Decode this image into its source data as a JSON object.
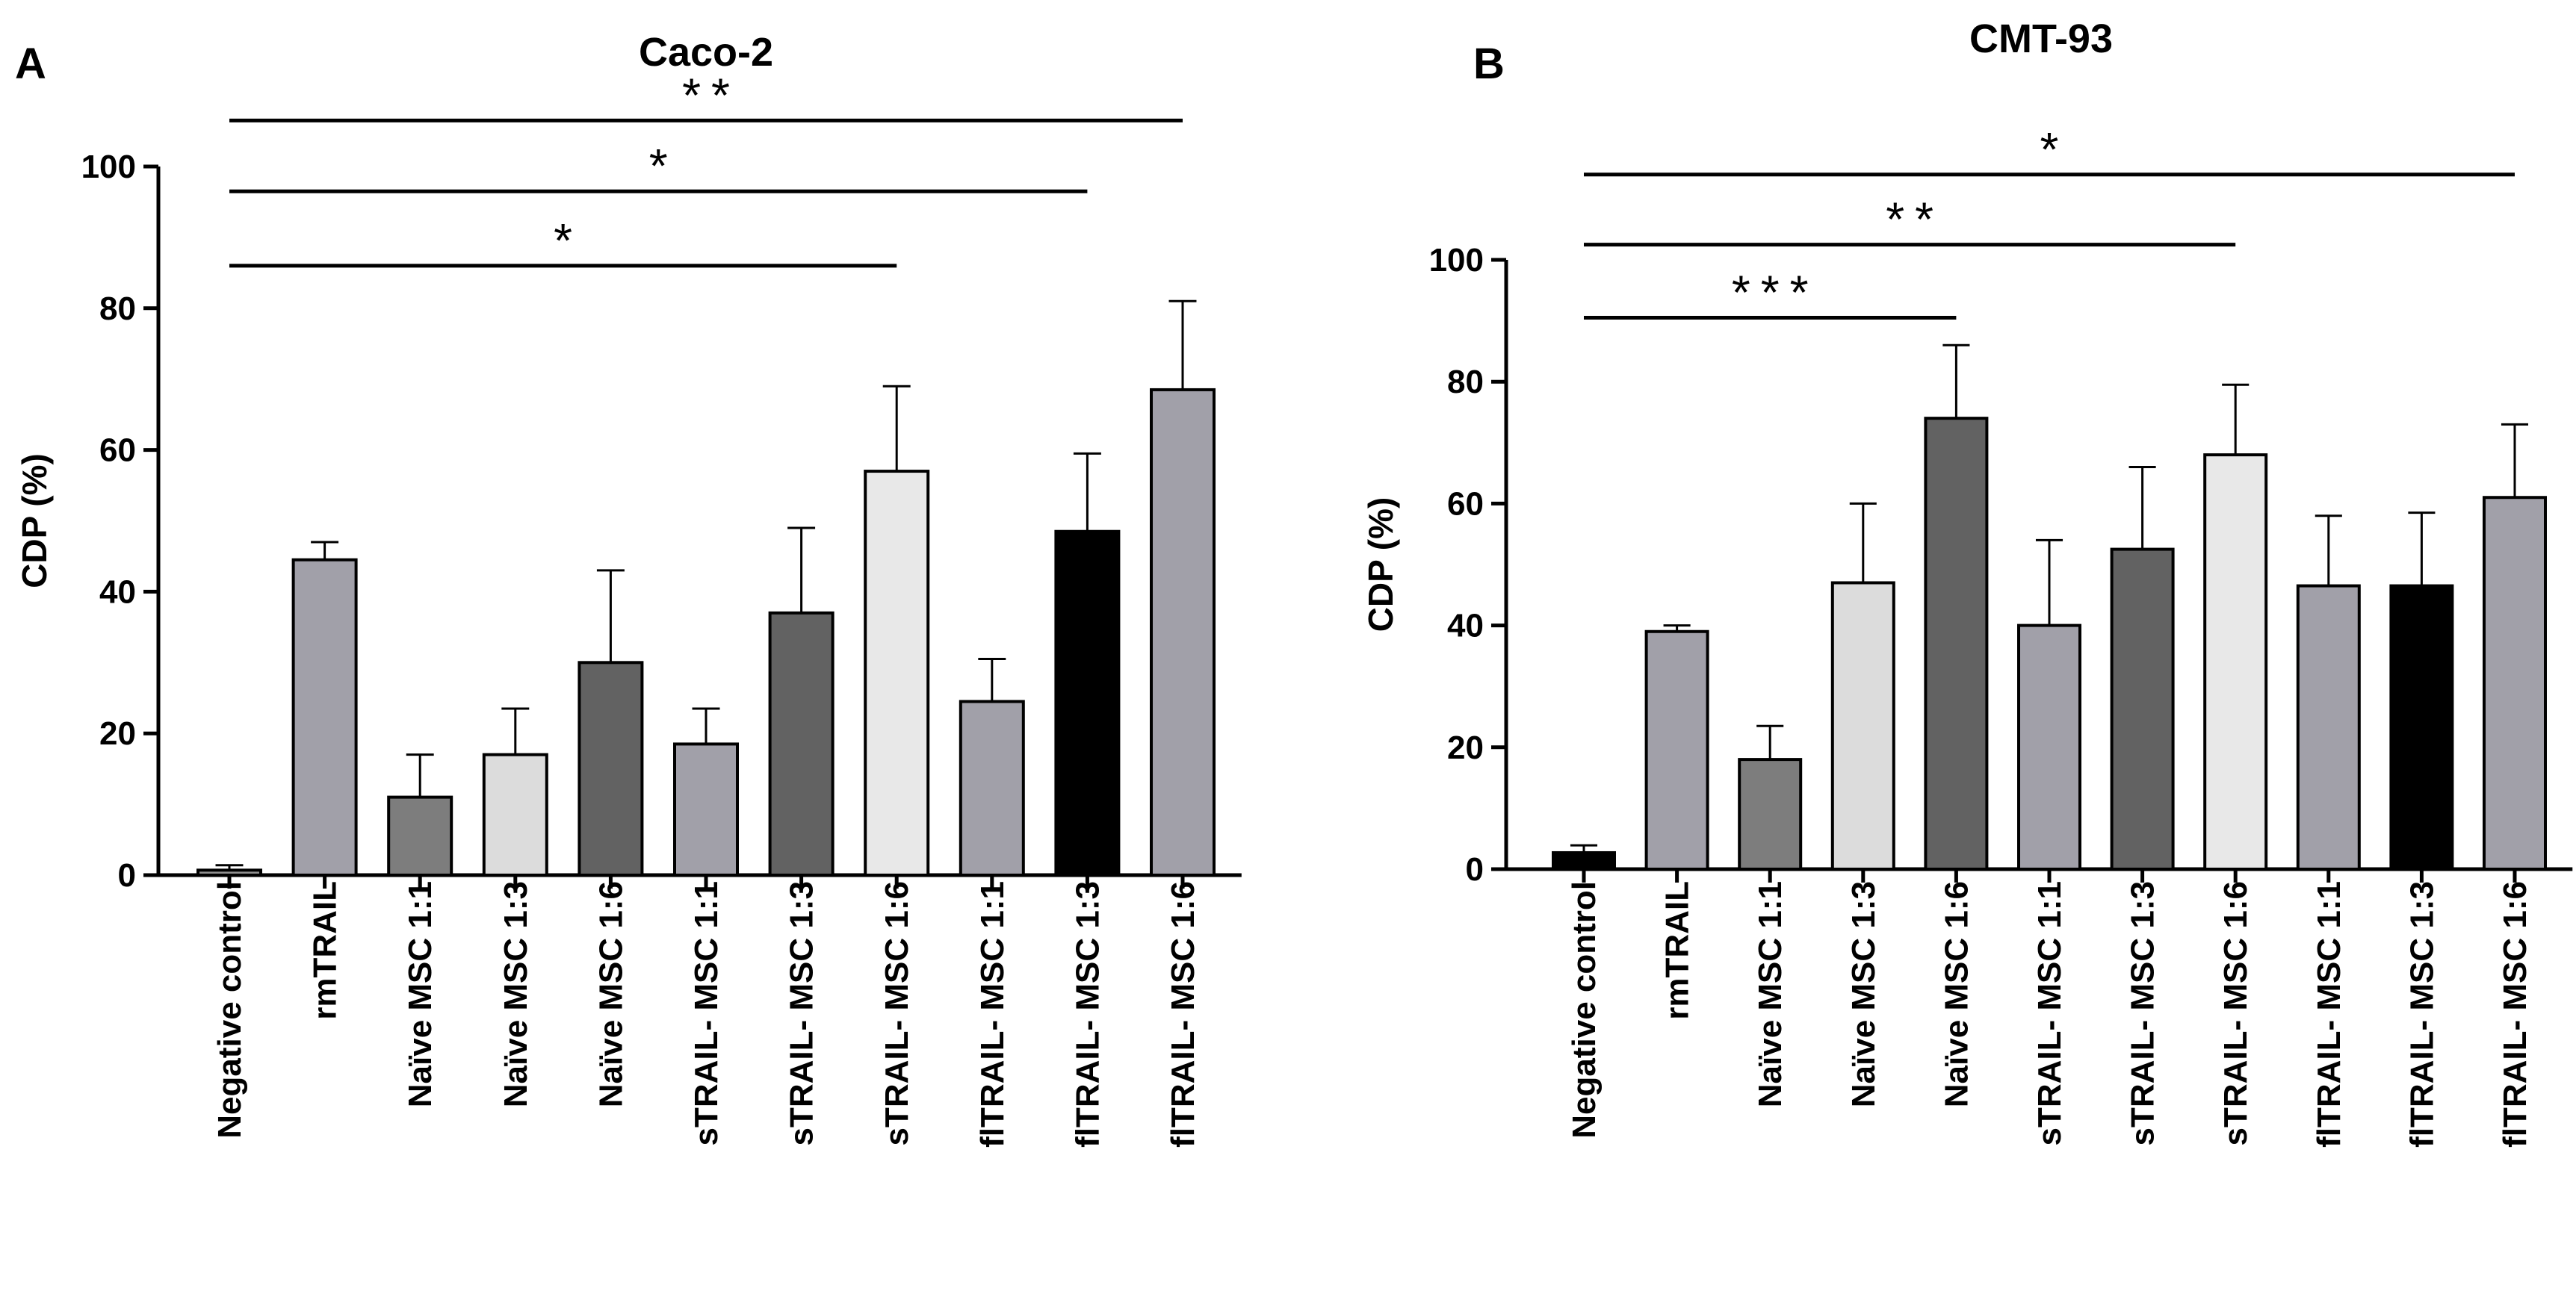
{
  "chart_data": [
    {
      "type": "bar",
      "panel": "A",
      "title": "Caco-2",
      "ylabel": "CDP (%)",
      "xlabel": "",
      "ylim": [
        0,
        100
      ],
      "yticks": [
        0,
        20,
        40,
        60,
        80,
        100
      ],
      "categories": [
        "Negative control",
        "rmTRAIL",
        "Naïve MSC 1:1",
        "Naïve MSC 1:3",
        "Naïve MSC 1:6",
        "sTRAIL- MSC 1:1",
        "sTRAIL- MSC 1:3",
        "sTRAIL- MSC 1:6",
        "flTRAIL- MSC 1:1",
        "flTRAIL- MSC 1:3",
        "flTRAIL- MSC 1:6"
      ],
      "values": [
        0.7,
        44.5,
        11,
        17,
        30,
        18.5,
        37,
        57,
        24.5,
        48.5,
        68.5
      ],
      "errors": [
        0.7,
        2.5,
        6,
        6.5,
        13,
        5,
        12,
        12,
        6,
        11,
        12.5
      ],
      "colors": [
        "#8e8e8e",
        "#a1a0a9",
        "#7d7d7d",
        "#dcdcdc",
        "#626262",
        "#a1a0a9",
        "#626262",
        "#e8e8e8",
        "#a1a0a9",
        "#000000",
        "#a1a0a9"
      ],
      "significance": [
        {
          "from": 0,
          "to": 7,
          "label": "*",
          "level": 86
        },
        {
          "from": 0,
          "to": 9,
          "label": "*",
          "level": 96.5
        },
        {
          "from": 0,
          "to": 10,
          "label": "**",
          "level": 106.5
        }
      ]
    },
    {
      "type": "bar",
      "panel": "B",
      "title": "CMT-93",
      "ylabel": "CDP (%)",
      "xlabel": "",
      "ylim": [
        0,
        100
      ],
      "yticks": [
        0,
        20,
        40,
        60,
        80,
        100
      ],
      "categories": [
        "Negative control",
        "rmTRAIL",
        "Naïve MSC 1:1",
        "Naïve MSC 1:3",
        "Naïve MSC 1:6",
        "sTRAIL- MSC 1:1",
        "sTRAIL- MSC 1:3",
        "sTRAIL- MSC 1:6",
        "flTRAIL- MSC 1:1",
        "flTRAIL- MSC 1:3",
        "flTRAIL- MSC 1:6"
      ],
      "values": [
        2.7,
        39,
        18,
        47,
        74,
        40,
        52.5,
        68,
        46.5,
        46.5,
        61
      ],
      "errors": [
        1.2,
        1,
        5.5,
        13,
        12,
        14,
        13.5,
        11.5,
        11.5,
        12,
        12
      ],
      "colors": [
        "#000000",
        "#a1a0a9",
        "#7d7d7d",
        "#dcdcdc",
        "#626262",
        "#a1a0a9",
        "#626262",
        "#e8e8e8",
        "#a1a0a9",
        "#000000",
        "#a1a0a9"
      ],
      "significance": [
        {
          "from": 0,
          "to": 4,
          "label": "***",
          "level": 90.5
        },
        {
          "from": 0,
          "to": 7,
          "label": "**",
          "level": 102.5
        },
        {
          "from": 0,
          "to": 10,
          "label": "*",
          "level": 114
        }
      ]
    }
  ]
}
